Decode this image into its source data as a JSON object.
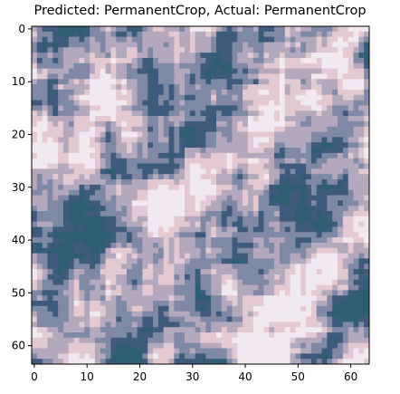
{
  "title": "Predicted: PermanentCrop, Actual: PermanentCrop",
  "chart_data": {
    "type": "heatmap",
    "title": "Predicted: PermanentCrop, Actual: PermanentCrop",
    "xlabel": "",
    "ylabel": "",
    "image_size": [
      64,
      64
    ],
    "xlim": [
      -0.5,
      63.5
    ],
    "ylim": [
      63.5,
      -0.5
    ],
    "x_ticks": [
      0,
      10,
      20,
      30,
      40,
      50,
      60
    ],
    "y_ticks": [
      0,
      10,
      20,
      30,
      40,
      50,
      60
    ],
    "x_tick_labels": [
      "0",
      "10",
      "20",
      "30",
      "40",
      "50",
      "60"
    ],
    "y_tick_labels": [
      "0",
      "10",
      "20",
      "30",
      "40",
      "50",
      "60"
    ],
    "grid": false,
    "palette": {
      "light": "#f1e9ef",
      "pink": "#e3c9d2",
      "mauve": "#b4a8bd",
      "slate": "#7f89a5",
      "dark": "#3e5a7c",
      "teal": "#2f5e74"
    }
  }
}
